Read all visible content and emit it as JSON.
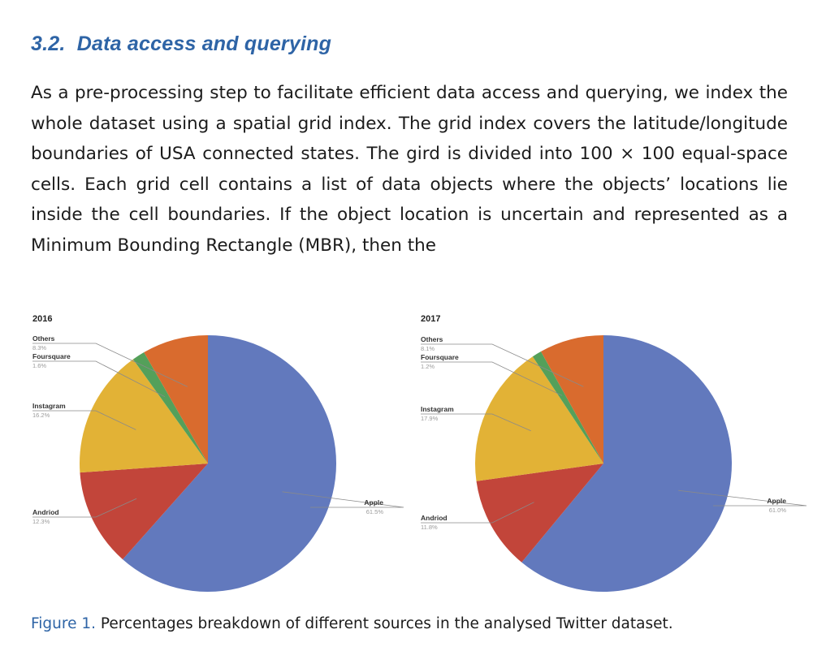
{
  "section": {
    "number": "3.2.",
    "title": "Data access and querying"
  },
  "paragraph": "As a pre-processing step to facilitate efficient data access and querying, we index the whole dataset using a spatial grid index. The grid index covers the latitude/longitude boundaries of USA connected states. The gird is divided into 100 × 100 equal-space cells. Each grid cell contains a list of data objects where the objects’ locations lie inside the cell boundaries. If the object location is uncertain and represented as a Minimum Bounding Rectangle (MBR), then the",
  "figure": {
    "label": "Figure 1.",
    "caption": "Percentages breakdown of different sources in the analysed Twitter dataset."
  },
  "colors": {
    "Apple": "#6279bd",
    "Andriod": "#c2453a",
    "Instagram": "#e2b236",
    "Foursquare": "#54a05a",
    "Others": "#d96b2e"
  },
  "chart_data": [
    {
      "type": "pie",
      "title": "2016",
      "slices": [
        {
          "label": "Apple",
          "value": 61.5,
          "display": "61.5%"
        },
        {
          "label": "Andriod",
          "value": 12.3,
          "display": "12.3%"
        },
        {
          "label": "Instagram",
          "value": 16.2,
          "display": "16.2%"
        },
        {
          "label": "Foursquare",
          "value": 1.6,
          "display": "1.6%"
        },
        {
          "label": "Others",
          "value": 8.3,
          "display": "8.3%"
        }
      ]
    },
    {
      "type": "pie",
      "title": "2017",
      "slices": [
        {
          "label": "Apple",
          "value": 61.0,
          "display": "61.0%"
        },
        {
          "label": "Andriod",
          "value": 11.8,
          "display": "11.8%"
        },
        {
          "label": "Instagram",
          "value": 17.9,
          "display": "17.9%"
        },
        {
          "label": "Foursquare",
          "value": 1.2,
          "display": "1.2%"
        },
        {
          "label": "Others",
          "value": 8.1,
          "display": "8.1%"
        }
      ]
    }
  ]
}
